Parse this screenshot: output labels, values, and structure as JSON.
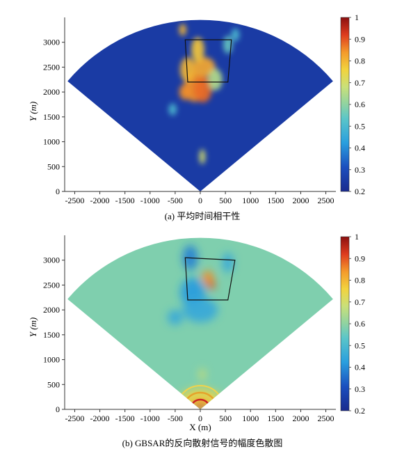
{
  "chart_data": [
    {
      "type": "heatmap",
      "panel": "a",
      "caption": "(a) 平均时间相干性",
      "xlabel": "",
      "ylabel": "Y (m)",
      "xlim": [
        -2700,
        2700
      ],
      "ylim": [
        0,
        3500
      ],
      "x_ticks": [
        "-2500",
        "-2000",
        "-1500",
        "-1000",
        "-500",
        "0",
        "500",
        "1000",
        "1500",
        "2000",
        "2500"
      ],
      "y_ticks": [
        "0",
        "500",
        "1000",
        "1500",
        "2000",
        "2500",
        "3000"
      ],
      "colorbar": {
        "min": 0.2,
        "max": 1.0,
        "ticks": [
          "0.2",
          "0.3",
          "0.4",
          "0.5",
          "0.6",
          "0.7",
          "0.8",
          "0.9",
          "1"
        ]
      },
      "sector": {
        "radius": 3450,
        "half_angle_deg": 50
      },
      "background_value": 0.25,
      "hotspots": [
        {
          "x": -120,
          "y": 2100,
          "rx": 200,
          "ry": 300,
          "value": 0.85
        },
        {
          "x": 50,
          "y": 2050,
          "rx": 180,
          "ry": 260,
          "value": 0.88
        },
        {
          "x": -250,
          "y": 2450,
          "rx": 150,
          "ry": 250,
          "value": 0.8
        },
        {
          "x": 80,
          "y": 2500,
          "rx": 220,
          "ry": 200,
          "value": 0.82
        },
        {
          "x": -50,
          "y": 2850,
          "rx": 130,
          "ry": 250,
          "value": 0.78
        },
        {
          "x": -300,
          "y": 2000,
          "rx": 120,
          "ry": 160,
          "value": 0.85
        },
        {
          "x": 300,
          "y": 2250,
          "rx": 140,
          "ry": 220,
          "value": 0.65
        },
        {
          "x": -350,
          "y": 3250,
          "rx": 70,
          "ry": 120,
          "value": 0.8
        },
        {
          "x": 550,
          "y": 2950,
          "rx": 90,
          "ry": 180,
          "value": 0.55
        },
        {
          "x": 40,
          "y": 700,
          "rx": 60,
          "ry": 150,
          "value": 0.7
        },
        {
          "x": -550,
          "y": 1650,
          "rx": 80,
          "ry": 120,
          "value": 0.5
        },
        {
          "x": 700,
          "y": 3150,
          "rx": 80,
          "ry": 130,
          "value": 0.5
        }
      ],
      "roi": [
        [
          -300,
          3050
        ],
        [
          620,
          3050
        ],
        [
          550,
          2200
        ],
        [
          -250,
          2200
        ]
      ]
    },
    {
      "type": "heatmap",
      "panel": "b",
      "caption": "(b) GBSAR的反向散射信号的幅度色散图",
      "xlabel": "X (m)",
      "ylabel": "Y (m)",
      "xlim": [
        -2700,
        2700
      ],
      "ylim": [
        0,
        3500
      ],
      "x_ticks": [
        "-2500",
        "-2000",
        "-1500",
        "-1000",
        "-500",
        "0",
        "500",
        "1000",
        "1500",
        "2000",
        "2500"
      ],
      "y_ticks": [
        "0",
        "500",
        "1000",
        "1500",
        "2000",
        "2500",
        "3000"
      ],
      "colorbar": {
        "min": 0.2,
        "max": 1.0,
        "ticks": [
          "0.2",
          "0.3",
          "0.4",
          "0.5",
          "0.6",
          "0.7",
          "0.8",
          "0.9",
          "1"
        ]
      },
      "sector": {
        "radius": 3450,
        "half_angle_deg": 50
      },
      "background_value": 0.58,
      "hotspots": [
        {
          "x": 150,
          "y": 2650,
          "rx": 120,
          "ry": 140,
          "value": 0.85
        },
        {
          "x": 220,
          "y": 2500,
          "rx": 80,
          "ry": 90,
          "value": 0.9
        },
        {
          "x": -150,
          "y": 2350,
          "rx": 250,
          "ry": 300,
          "value": 0.42
        },
        {
          "x": -200,
          "y": 3050,
          "rx": 150,
          "ry": 250,
          "value": 0.38
        },
        {
          "x": 0,
          "y": 2000,
          "rx": 350,
          "ry": 250,
          "value": 0.45
        },
        {
          "x": -500,
          "y": 1850,
          "rx": 150,
          "ry": 150,
          "value": 0.45
        },
        {
          "x": 550,
          "y": 2950,
          "rx": 110,
          "ry": 200,
          "value": 0.45
        },
        {
          "x": 0,
          "y": 200,
          "rx": 400,
          "ry": 220,
          "value": 0.75
        },
        {
          "x": 0,
          "y": 80,
          "rx": 180,
          "ry": 80,
          "value": 0.9
        },
        {
          "x": 40,
          "y": 700,
          "rx": 60,
          "ry": 120,
          "value": 0.7
        }
      ],
      "roi": [
        [
          -300,
          3050
        ],
        [
          690,
          3000
        ],
        [
          550,
          2200
        ],
        [
          -250,
          2200
        ]
      ]
    }
  ]
}
